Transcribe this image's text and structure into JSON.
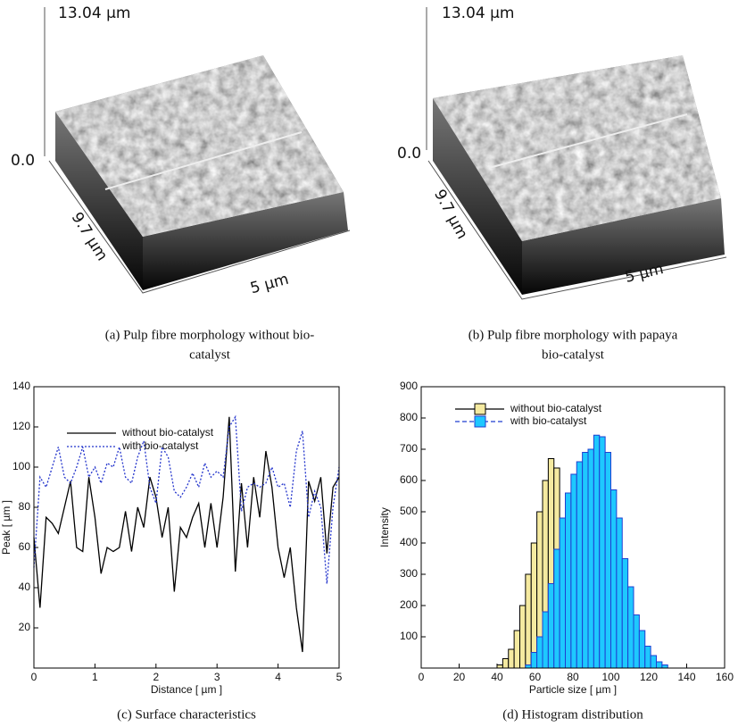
{
  "panels": [
    {
      "z_max": "13.04 µm",
      "z_min": "0.0",
      "y_extent": "9.7 µm",
      "x_extent": "5 µm",
      "caption": [
        "(a) Pulp fibre morphology without bio-",
        "catalyst"
      ]
    },
    {
      "z_max": "13.04 µm",
      "z_min": "0.0",
      "y_extent": "9.7 µm",
      "x_extent": "5 µm",
      "caption": [
        "(b) Pulp fibre morphology with papaya",
        "bio-catalyst"
      ]
    }
  ],
  "chart_data": [
    {
      "type": "line",
      "caption": "(c) Surface characteristics",
      "xlabel": "Distance [ µm ]",
      "ylabel": "Peak [ µm ]",
      "xlim": [
        0,
        5
      ],
      "ylim": [
        0,
        140
      ],
      "xticks": [
        0,
        1,
        2,
        3,
        4,
        5
      ],
      "yticks": [
        20,
        40,
        60,
        80,
        100,
        120,
        140
      ],
      "x": [
        0,
        0.1,
        0.2,
        0.3,
        0.4,
        0.5,
        0.6,
        0.7,
        0.8,
        0.9,
        1.0,
        1.1,
        1.2,
        1.3,
        1.4,
        1.5,
        1.6,
        1.7,
        1.8,
        1.9,
        2.0,
        2.1,
        2.2,
        2.3,
        2.4,
        2.5,
        2.6,
        2.7,
        2.8,
        2.9,
        3.0,
        3.1,
        3.2,
        3.3,
        3.4,
        3.5,
        3.6,
        3.7,
        3.8,
        3.9,
        4.0,
        4.1,
        4.2,
        4.3,
        4.4,
        4.5,
        4.6,
        4.7,
        4.8,
        4.9,
        5.0
      ],
      "series": [
        {
          "name": "without bio-catalyst",
          "color": "#000000",
          "linestyle": "solid",
          "values": [
            65,
            30,
            75,
            72,
            67,
            80,
            93,
            60,
            58,
            95,
            75,
            47,
            60,
            58,
            60,
            78,
            58,
            80,
            70,
            95,
            85,
            65,
            80,
            38,
            70,
            65,
            75,
            82,
            60,
            82,
            60,
            85,
            125,
            48,
            92,
            60,
            95,
            75,
            108,
            90,
            60,
            45,
            60,
            30,
            8,
            93,
            83,
            95,
            57,
            90,
            95
          ]
        },
        {
          "name": "with bio-catalyst",
          "color": "#2233cc",
          "linestyle": "dotted",
          "values": [
            50,
            95,
            90,
            100,
            110,
            95,
            92,
            100,
            110,
            95,
            100,
            92,
            102,
            100,
            110,
            95,
            92,
            105,
            113,
            90,
            82,
            110,
            105,
            88,
            85,
            90,
            97,
            90,
            102,
            95,
            98,
            95,
            120,
            125,
            78,
            90,
            92,
            90,
            92,
            100,
            90,
            92,
            80,
            108,
            118,
            75,
            88,
            80,
            42,
            80,
            100
          ]
        }
      ]
    },
    {
      "type": "histogram",
      "caption": "(d) Histogram distribution",
      "xlabel": "Particle size [ µm ]",
      "ylabel": "Intensity",
      "xlim": [
        0,
        160
      ],
      "ylim": [
        0,
        900
      ],
      "xticks": [
        0,
        20,
        40,
        60,
        80,
        100,
        120,
        140,
        160
      ],
      "yticks": [
        100,
        200,
        300,
        400,
        500,
        600,
        700,
        800,
        900
      ],
      "bins": [
        40,
        43,
        46,
        49,
        52,
        55,
        58,
        61,
        64,
        67,
        70,
        73,
        76,
        79,
        82,
        85,
        88,
        91,
        94,
        97,
        100,
        103,
        106,
        109,
        112,
        115,
        118,
        121,
        124,
        127,
        130
      ],
      "series": [
        {
          "name": "without bio-catalyst",
          "color": "#f5eaa0",
          "edgecolor": "#000000",
          "linestyle": "solid",
          "values": [
            10,
            30,
            60,
            120,
            200,
            300,
            400,
            500,
            600,
            670,
            640,
            0,
            0,
            0,
            0,
            0,
            0,
            0,
            0,
            0,
            0,
            0,
            0,
            0,
            0,
            0,
            0,
            0,
            0,
            0
          ]
        },
        {
          "name": "with bio-catalyst",
          "color": "#1ec8ff",
          "edgecolor": "#1f3fd0",
          "linestyle": "dashed",
          "values": [
            0,
            0,
            0,
            0,
            0,
            10,
            50,
            100,
            180,
            270,
            380,
            480,
            560,
            620,
            660,
            690,
            700,
            745,
            740,
            690,
            570,
            480,
            350,
            260,
            170,
            120,
            70,
            40,
            20,
            10
          ]
        }
      ]
    }
  ]
}
